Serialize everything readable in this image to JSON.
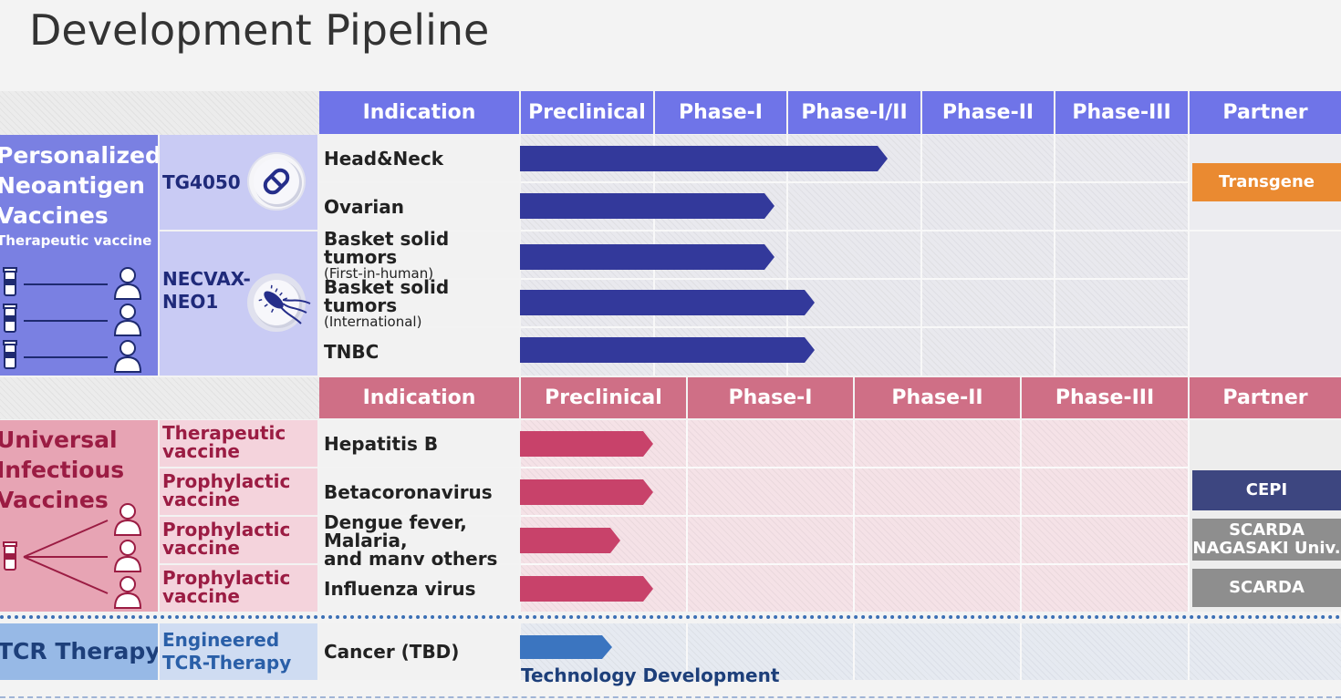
{
  "title": "Development Pipeline",
  "colors": {
    "blue_header": "#6f74e8",
    "blue_bar": "#33399b",
    "blue_category": "#7a80e2",
    "blue_product_bg": "#c9cbf4",
    "pink_header": "#cf6f86",
    "pink_bar": "#c8426a",
    "pink_category": "#e7a4b4",
    "pink_product_bg": "#f4d3dc",
    "tcr_category": "#97b9e6",
    "tcr_bar": "#3b75c0",
    "orange_partner": "#ea8a31",
    "navy_partner": "#3d4680",
    "gray_partner": "#8e8e8e"
  },
  "section1": {
    "headers": [
      "Indication",
      "Preclinical",
      "Phase-I",
      "Phase-I/II",
      "Phase-II",
      "Phase-III",
      "Partner"
    ],
    "category": {
      "line1": "Personalized",
      "line2": "Neoantigen",
      "line3": "Vaccines",
      "sub": "Therapeutic vaccine"
    },
    "products": [
      {
        "name": "TG4050",
        "icon": "capsule-icon"
      },
      {
        "name_line1": "NECVAX-",
        "name_line2": "NEO1",
        "icon": "bacterium-icon"
      }
    ],
    "rows": [
      {
        "indication": "Head&Neck",
        "sub": "",
        "progress_phases": 2.75
      },
      {
        "indication": "Ovarian",
        "sub": "",
        "progress_phases": 1.9
      },
      {
        "indication": "Basket solid tumors",
        "sub": "(First-in-human)",
        "progress_phases": 1.9
      },
      {
        "indication": "Basket solid tumors",
        "sub": "(International)",
        "progress_phases": 2.2
      },
      {
        "indication": "TNBC",
        "sub": "",
        "progress_phases": 2.2
      }
    ],
    "partners": [
      "Transgene"
    ]
  },
  "section2": {
    "headers": [
      "Indication",
      "Preclinical",
      "Phase-I",
      "Phase-II",
      "Phase-III",
      "Partner"
    ],
    "category": {
      "line1": "Universal",
      "line2": "Infectious",
      "line3": "Vaccines"
    },
    "rows": [
      {
        "type_line1": "Therapeutic",
        "type_line2": "vaccine",
        "indication": "Hepatitis B",
        "indication2": "",
        "progress_phases": 0.8,
        "partner": ""
      },
      {
        "type_line1": "Prophylactic",
        "type_line2": "vaccine",
        "indication": "Betacoronavirus",
        "indication2": "",
        "progress_phases": 0.8,
        "partner": "CEPI"
      },
      {
        "type_line1": "Prophylactic",
        "type_line2": "vaccine",
        "indication": "Dengue fever, Malaria,",
        "indication2": "and many others",
        "progress_phases": 0.6,
        "partner": "SCARDA\nNAGASAKI Univ."
      },
      {
        "type_line1": "Prophylactic",
        "type_line2": "vaccine",
        "indication": "Influenza virus",
        "indication2": "",
        "progress_phases": 0.8,
        "partner": "SCARDA"
      }
    ],
    "partner_lines": {
      "cepi": "CEPI",
      "scarda1": "SCARDA",
      "nagasaki": "NAGASAKI Univ.",
      "scarda2": "SCARDA"
    }
  },
  "section3": {
    "category": "TCR Therapy",
    "product_line1": "Engineered",
    "product_line2": "TCR-Therapy",
    "indication": "Cancer (TBD)",
    "stage_label": "Technology Development"
  }
}
